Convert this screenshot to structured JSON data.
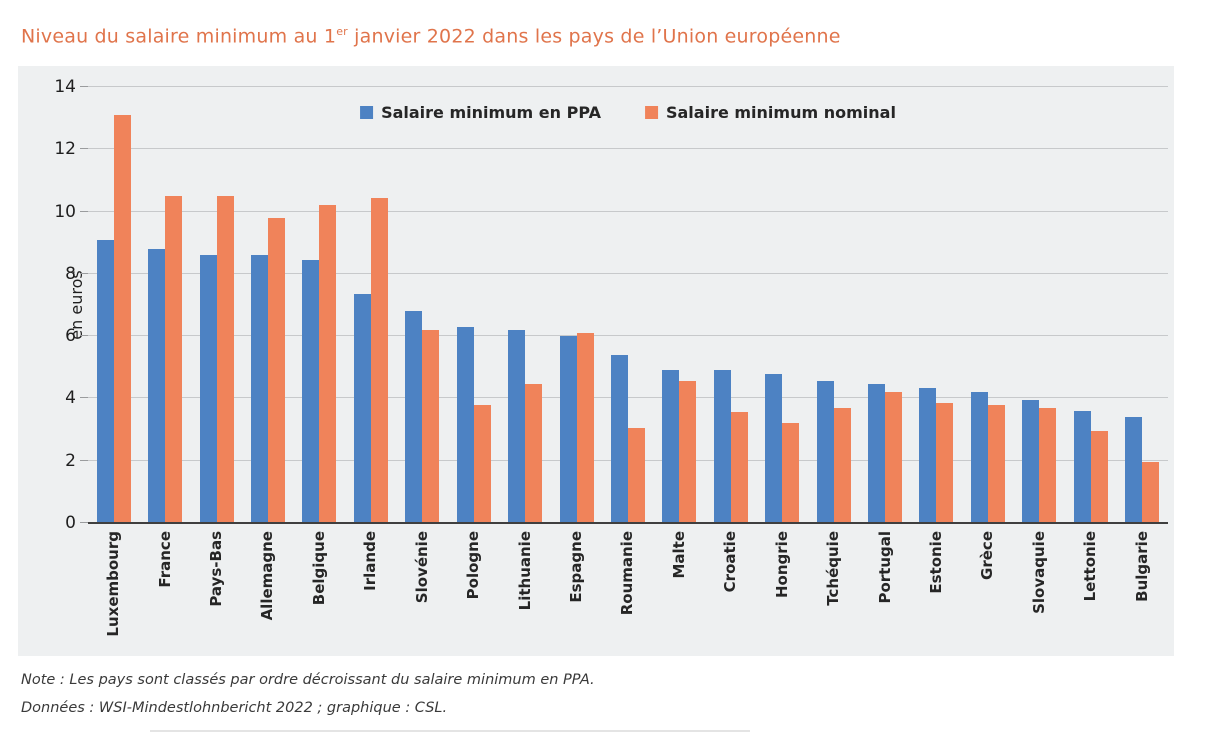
{
  "title": {
    "prefix": "Niveau du salaire minimum au 1",
    "superscript": "er",
    "suffix": " janvier 2022 dans les pays de l’Union européenne"
  },
  "notes": {
    "line1": "Note : Les pays sont classés par ordre décroissant du salaire minimum en PPA.",
    "line2": "Données : WSI-Mindestlohnbericht 2022 ; graphique : CSL."
  },
  "colors": {
    "title": "#e0744b",
    "ppa_blue": "#4d82c3",
    "nominal_orange": "#f0835a",
    "panel_background": "#eef0f1",
    "gridline": "#c7c9cb",
    "axis_line": "#3f3f3f",
    "text_dark": "#262626"
  },
  "chart_data": {
    "type": "bar",
    "title": "Niveau du salaire minimum au 1er janvier 2022 dans les pays de l’Union européenne",
    "xlabel": "",
    "ylabel": "en euros",
    "ylim": [
      0,
      14
    ],
    "yticks": [
      0,
      2,
      4,
      6,
      8,
      10,
      12,
      14
    ],
    "grid": true,
    "legend_position": "top-center",
    "sort_note": "countries sorted by decreasing minimum wage in PPA",
    "categories": [
      "Luxembourg",
      "France",
      "Pays-Bas",
      "Allemagne",
      "Belgique",
      "Irlande",
      "Slovénie",
      "Pologne",
      "Lithuanie",
      "Espagne",
      "Roumanie",
      "Malte",
      "Croatie",
      "Hongrie",
      "Tchéquie",
      "Portugal",
      "Estonie",
      "Grèce",
      "Slovaquie",
      "Lettonie",
      "Bulgarie"
    ],
    "series": [
      {
        "name": "Salaire minimum en PPA",
        "color": "#4d82c3",
        "values": [
          9.1,
          8.8,
          8.6,
          8.6,
          8.45,
          7.35,
          6.8,
          6.3,
          6.2,
          6.0,
          5.4,
          4.9,
          4.9,
          4.8,
          4.55,
          4.45,
          4.35,
          4.2,
          3.95,
          3.6,
          3.4
        ]
      },
      {
        "name": "Salaire minimum nominal",
        "color": "#f0835a",
        "values": [
          13.1,
          10.5,
          10.5,
          9.8,
          10.2,
          10.45,
          6.2,
          3.8,
          4.45,
          6.1,
          3.05,
          4.55,
          3.55,
          3.2,
          3.7,
          4.2,
          3.85,
          3.8,
          3.7,
          2.95,
          1.95
        ]
      }
    ]
  }
}
